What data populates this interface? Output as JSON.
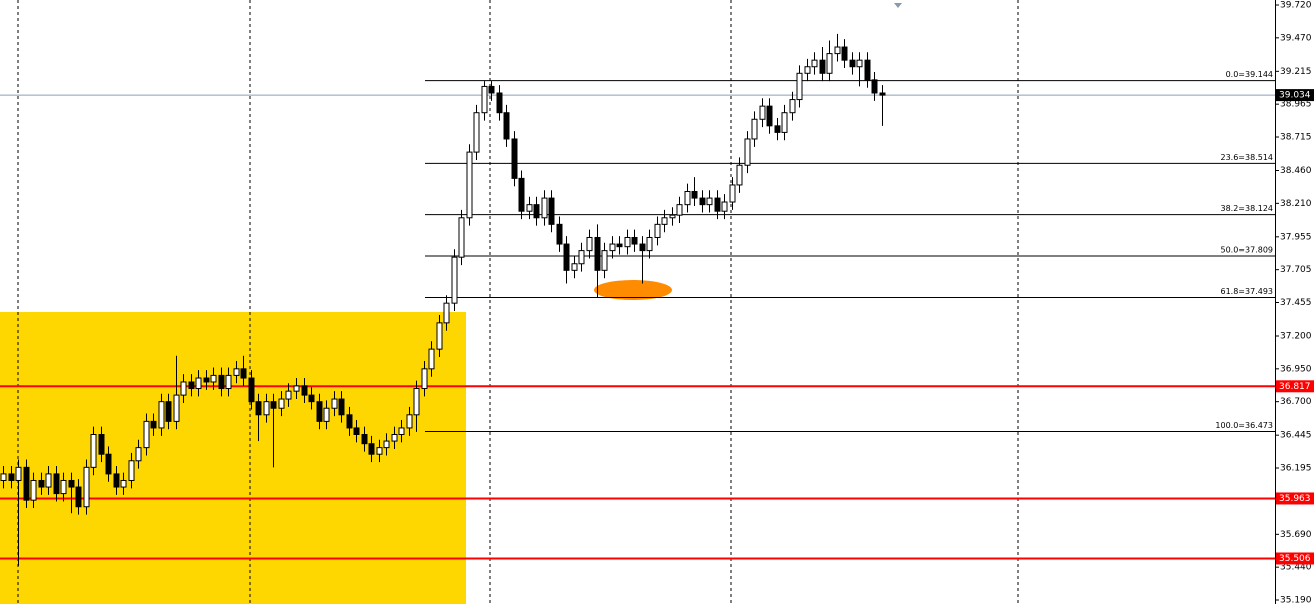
{
  "chart_data": {
    "type": "candlestick",
    "open": [
      36.1,
      36.15,
      36.1,
      36.2,
      35.95,
      36.1,
      36.05,
      36.15,
      36.0,
      36.1,
      36.05,
      35.9,
      36.2,
      36.45,
      36.3,
      36.15,
      36.05,
      36.1,
      36.25,
      36.35,
      36.55,
      36.5,
      36.7,
      36.55,
      36.75,
      36.85,
      36.8,
      36.88,
      36.85,
      36.9,
      36.8,
      36.9,
      36.95,
      36.88,
      36.7,
      36.6,
      36.7,
      36.65,
      36.72,
      36.78,
      36.82,
      36.75,
      36.7,
      36.55,
      36.65,
      36.72,
      36.6,
      36.5,
      36.45,
      36.38,
      36.3,
      36.35,
      36.4,
      36.45,
      36.5,
      36.6,
      36.8,
      36.95,
      37.1,
      37.3,
      37.45,
      37.8,
      38.1,
      38.6,
      38.9,
      39.1,
      39.05,
      38.9,
      38.7,
      38.4,
      38.15,
      38.2,
      38.1,
      38.25,
      38.05,
      37.9,
      37.7,
      37.75,
      37.85,
      37.95,
      37.7,
      37.85,
      37.9,
      37.88,
      37.95,
      37.9,
      37.85,
      37.95,
      38.05,
      38.1,
      38.12,
      38.2,
      38.3,
      38.25,
      38.2,
      38.25,
      38.15,
      38.22,
      38.35,
      38.5,
      38.7,
      38.85,
      38.95,
      38.8,
      38.75,
      38.9,
      39.0,
      39.2,
      39.25,
      39.3,
      39.2,
      39.35,
      39.4,
      39.3,
      39.25,
      39.3,
      39.15,
      39.05
    ],
    "high": [
      36.21,
      36.21,
      36.26,
      36.26,
      36.16,
      36.16,
      36.21,
      36.21,
      36.16,
      36.16,
      36.11,
      36.26,
      36.51,
      36.51,
      36.36,
      36.21,
      36.16,
      36.31,
      36.41,
      36.61,
      36.61,
      36.76,
      36.76,
      37.05,
      36.91,
      36.91,
      36.94,
      36.94,
      36.96,
      36.96,
      36.96,
      37.01,
      37.05,
      36.94,
      36.76,
      36.76,
      36.76,
      36.78,
      36.84,
      36.88,
      36.88,
      36.81,
      36.76,
      36.71,
      36.78,
      36.78,
      36.66,
      36.56,
      36.51,
      36.44,
      36.41,
      36.46,
      36.51,
      36.56,
      36.66,
      36.86,
      37.01,
      37.16,
      37.36,
      37.51,
      37.86,
      38.16,
      38.66,
      38.96,
      39.14,
      39.14,
      39.11,
      38.96,
      38.76,
      38.46,
      38.26,
      38.26,
      38.31,
      38.31,
      38.11,
      37.96,
      37.81,
      37.91,
      38.01,
      38.05,
      37.91,
      37.96,
      37.96,
      38.01,
      38.01,
      37.96,
      38.01,
      38.11,
      38.16,
      38.18,
      38.26,
      38.36,
      38.41,
      38.31,
      38.31,
      38.31,
      38.28,
      38.41,
      38.56,
      38.76,
      38.91,
      39.01,
      39.01,
      38.86,
      38.96,
      39.06,
      39.26,
      39.31,
      39.36,
      39.4,
      39.45,
      39.5,
      39.46,
      39.36,
      39.36,
      39.36,
      39.21,
      39.11
    ],
    "low": [
      36.04,
      36.04,
      35.45,
      35.89,
      35.89,
      35.99,
      35.99,
      35.94,
      35.94,
      35.85,
      35.84,
      35.84,
      36.14,
      36.24,
      36.09,
      35.99,
      35.99,
      36.04,
      36.19,
      36.29,
      36.44,
      36.44,
      36.49,
      36.49,
      36.69,
      36.74,
      36.74,
      36.79,
      36.79,
      36.74,
      36.74,
      36.84,
      36.82,
      36.64,
      36.4,
      36.54,
      36.2,
      36.59,
      36.66,
      36.72,
      36.69,
      36.64,
      36.49,
      36.49,
      36.59,
      36.54,
      36.44,
      36.39,
      36.32,
      36.24,
      36.24,
      36.29,
      36.34,
      36.39,
      36.44,
      36.47,
      36.74,
      36.89,
      37.04,
      37.24,
      37.39,
      37.74,
      38.04,
      38.54,
      38.84,
      38.99,
      38.84,
      38.64,
      38.34,
      38.09,
      38.09,
      38.04,
      38.04,
      37.99,
      37.84,
      37.6,
      37.64,
      37.69,
      37.79,
      37.49,
      37.64,
      37.79,
      37.82,
      37.82,
      37.84,
      37.6,
      37.79,
      37.89,
      37.99,
      38.04,
      38.06,
      38.14,
      38.19,
      38.14,
      38.14,
      38.09,
      38.09,
      38.16,
      38.29,
      38.44,
      38.64,
      38.79,
      38.74,
      38.69,
      38.69,
      38.84,
      38.94,
      39.14,
      39.19,
      39.14,
      39.14,
      39.29,
      39.24,
      39.19,
      39.1,
      39.09,
      38.99,
      38.8
    ],
    "close": [
      36.15,
      36.1,
      36.2,
      35.95,
      36.1,
      36.05,
      36.15,
      36.0,
      36.1,
      36.05,
      35.9,
      36.2,
      36.45,
      36.3,
      36.15,
      36.05,
      36.1,
      36.25,
      36.35,
      36.55,
      36.5,
      36.7,
      36.55,
      36.75,
      36.85,
      36.8,
      36.88,
      36.85,
      36.9,
      36.8,
      36.9,
      36.95,
      36.88,
      36.7,
      36.6,
      36.7,
      36.65,
      36.72,
      36.78,
      36.82,
      36.75,
      36.7,
      36.55,
      36.65,
      36.72,
      36.6,
      36.5,
      36.45,
      36.38,
      36.3,
      36.35,
      36.4,
      36.45,
      36.5,
      36.6,
      36.8,
      36.95,
      37.1,
      37.3,
      37.45,
      37.8,
      38.1,
      38.6,
      38.9,
      39.1,
      39.05,
      38.9,
      38.7,
      38.4,
      38.15,
      38.2,
      38.1,
      38.25,
      38.05,
      37.9,
      37.7,
      37.75,
      37.85,
      37.95,
      37.7,
      37.85,
      37.9,
      37.88,
      37.95,
      37.9,
      37.85,
      37.95,
      38.05,
      38.1,
      38.12,
      38.2,
      38.3,
      38.25,
      38.2,
      38.25,
      38.15,
      38.22,
      38.35,
      38.5,
      38.7,
      38.85,
      38.95,
      38.8,
      38.75,
      38.9,
      39.0,
      39.2,
      39.25,
      39.3,
      39.2,
      39.35,
      39.4,
      39.3,
      39.25,
      39.3,
      39.15,
      39.05,
      39.034
    ],
    "ylim": [
      35.19,
      39.72
    ],
    "yticks": [
      {
        "value": 39.72,
        "label": "39.720"
      },
      {
        "value": 39.47,
        "label": "39.470"
      },
      39.215,
      38.965,
      38.715,
      {
        "value": 38.46,
        "label": "38.460"
      },
      {
        "value": 38.21,
        "label": "38.210"
      },
      37.955,
      37.705,
      37.455,
      {
        "value": 37.2,
        "label": "37.200"
      },
      {
        "value": 36.95,
        "label": "36.950"
      },
      {
        "value": 36.7,
        "label": "36.700"
      },
      36.445,
      36.195,
      {
        "value": 35.94,
        "label": "35.940"
      },
      {
        "value": 35.69,
        "label": "35.690"
      },
      {
        "value": 35.44,
        "label": "35.440"
      },
      {
        "value": 35.19,
        "label": "35.190"
      }
    ],
    "levels": [
      36.817,
      35.963,
      35.506
    ],
    "level_color": "#ff0000",
    "fib": [
      {
        "label": "0.0=39.144",
        "value": 39.144
      },
      {
        "label": "23.6=38.514",
        "value": 38.514
      },
      {
        "label": "38.2=38.124",
        "value": 38.124
      },
      {
        "label": "50.0=37.809",
        "value": 37.809
      },
      {
        "label": "61.8=37.493",
        "value": 37.493
      },
      {
        "label": "100.0=36.473",
        "value": 36.473
      }
    ],
    "current_price": 39.034
  }
}
